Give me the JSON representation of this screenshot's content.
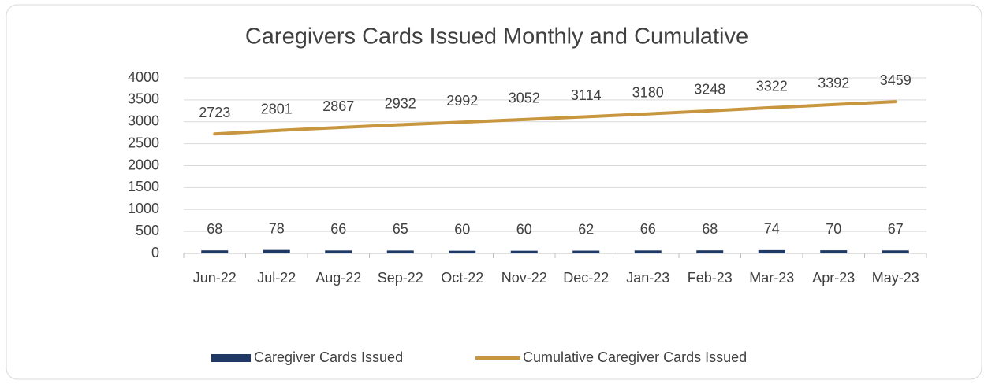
{
  "chart_data": {
    "type": "bar",
    "title": "Caregivers Cards Issued Monthly and Cumulative",
    "categories": [
      "Jun-22",
      "Jul-22",
      "Aug-22",
      "Sep-22",
      "Oct-22",
      "Nov-22",
      "Dec-22",
      "Jan-23",
      "Feb-23",
      "Mar-23",
      "Apr-23",
      "May-23"
    ],
    "series": [
      {
        "name": "Caregiver Cards Issued",
        "type": "bar",
        "color": "#1f3864",
        "values": [
          68,
          78,
          66,
          65,
          60,
          60,
          62,
          66,
          68,
          74,
          70,
          67
        ]
      },
      {
        "name": "Cumulative Caregiver Cards Issued",
        "type": "line",
        "color": "#c8963e",
        "values": [
          2723,
          2801,
          2867,
          2932,
          2992,
          3052,
          3114,
          3180,
          3248,
          3322,
          3392,
          3459
        ]
      }
    ],
    "ylim": [
      0,
      4000
    ],
    "yticks": [
      0,
      500,
      1000,
      1500,
      2000,
      2500,
      3000,
      3500,
      4000
    ],
    "grid": true,
    "legend": "bottom"
  }
}
